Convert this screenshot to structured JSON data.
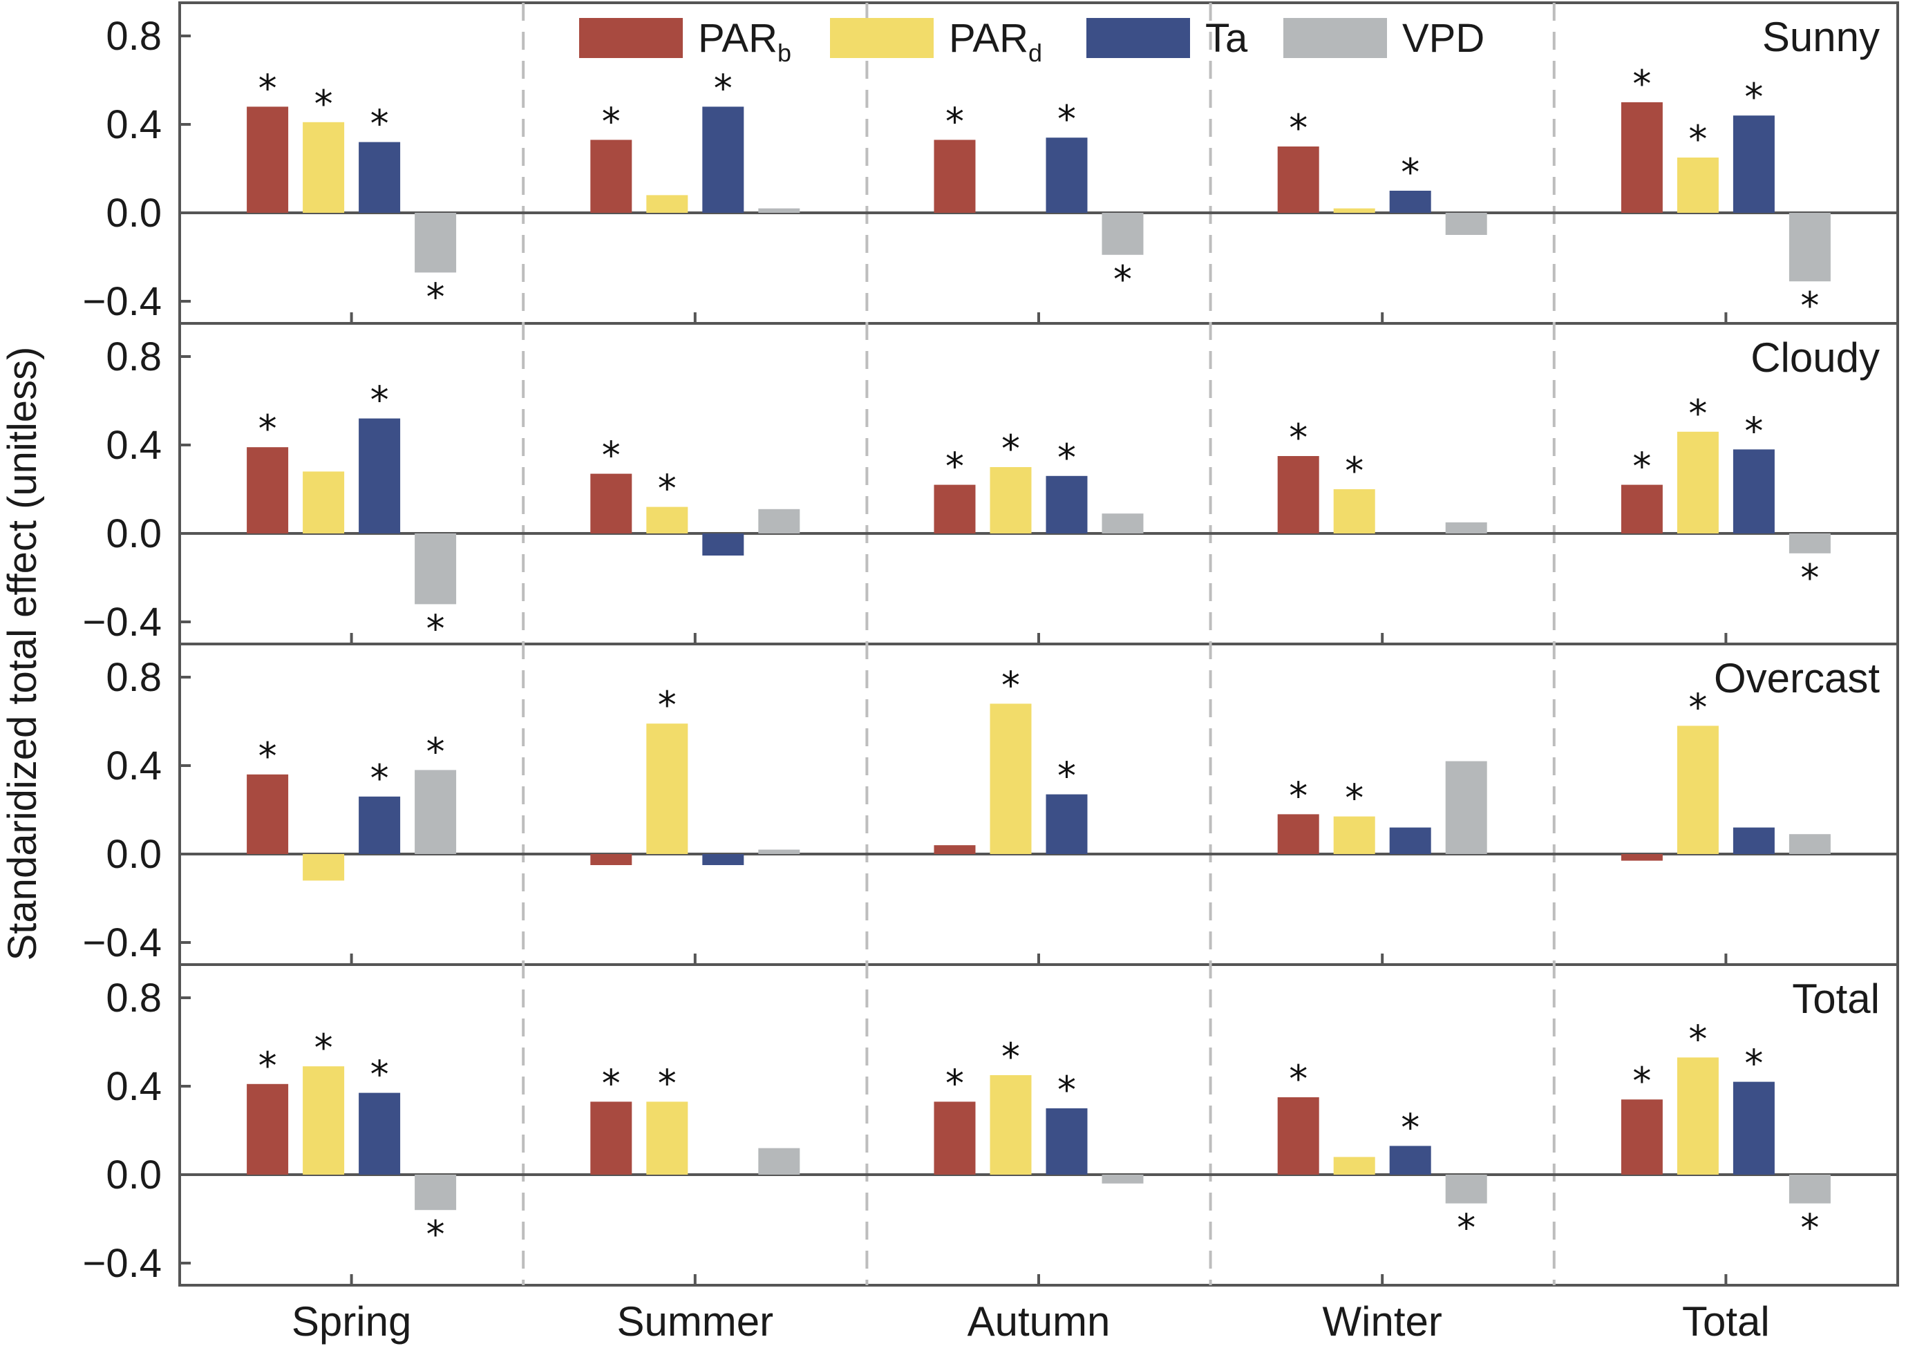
{
  "chart_data": {
    "type": "bar",
    "ylabel": "Standaridized total effect (unitless)",
    "ylim": [
      -0.5,
      0.95
    ],
    "yticks": [
      "0.8",
      "0.4",
      "0.0",
      "−0.4"
    ],
    "ytick_values": [
      0.8,
      0.4,
      0.0,
      -0.4
    ],
    "categories": [
      "Spring",
      "Summer",
      "Autumn",
      "Winter",
      "Total"
    ],
    "legend": {
      "placement": "top-center",
      "entries": [
        {
          "base": "PAR",
          "sub": "b",
          "color": "#a84a40"
        },
        {
          "base": "PAR",
          "sub": "d",
          "color": "#f2dc6a"
        },
        {
          "base": "Ta",
          "sub": "",
          "color": "#3c4f87"
        },
        {
          "base": "VPD",
          "sub": "",
          "color": "#b5b8ba"
        }
      ]
    },
    "panels": [
      {
        "label": "Sunny",
        "series": [
          {
            "values": [
              0.48,
              0.33,
              0.33,
              0.3,
              0.5
            ],
            "sig": [
              true,
              true,
              true,
              true,
              true
            ]
          },
          {
            "values": [
              0.41,
              0.08,
              0.0,
              0.02,
              0.25
            ],
            "sig": [
              true,
              false,
              false,
              false,
              true
            ]
          },
          {
            "values": [
              0.32,
              0.48,
              0.34,
              0.1,
              0.44
            ],
            "sig": [
              true,
              true,
              true,
              true,
              true
            ]
          },
          {
            "values": [
              -0.27,
              0.02,
              -0.19,
              -0.1,
              -0.31
            ],
            "sig": [
              true,
              false,
              true,
              false,
              true
            ]
          }
        ]
      },
      {
        "label": "Cloudy",
        "series": [
          {
            "values": [
              0.39,
              0.27,
              0.22,
              0.35,
              0.22
            ],
            "sig": [
              true,
              true,
              true,
              true,
              true
            ]
          },
          {
            "values": [
              0.28,
              0.12,
              0.3,
              0.2,
              0.46
            ],
            "sig": [
              false,
              true,
              true,
              true,
              true
            ]
          },
          {
            "values": [
              0.52,
              -0.1,
              0.26,
              0.0,
              0.38
            ],
            "sig": [
              true,
              false,
              true,
              false,
              true
            ]
          },
          {
            "values": [
              -0.32,
              0.11,
              0.09,
              0.05,
              -0.09
            ],
            "sig": [
              true,
              false,
              false,
              false,
              true
            ]
          }
        ]
      },
      {
        "label": "Overcast",
        "series": [
          {
            "values": [
              0.36,
              -0.05,
              0.04,
              0.18,
              -0.03
            ],
            "sig": [
              true,
              false,
              false,
              true,
              false
            ]
          },
          {
            "values": [
              -0.12,
              0.59,
              0.68,
              0.17,
              0.58
            ],
            "sig": [
              false,
              true,
              true,
              true,
              true
            ]
          },
          {
            "values": [
              0.26,
              -0.05,
              0.27,
              0.12,
              0.12
            ],
            "sig": [
              true,
              false,
              true,
              false,
              false
            ]
          },
          {
            "values": [
              0.38,
              0.02,
              0.0,
              0.42,
              0.09
            ],
            "sig": [
              true,
              false,
              false,
              false,
              false
            ]
          }
        ]
      },
      {
        "label": "Total",
        "series": [
          {
            "values": [
              0.41,
              0.33,
              0.33,
              0.35,
              0.34
            ],
            "sig": [
              true,
              true,
              true,
              true,
              true
            ]
          },
          {
            "values": [
              0.49,
              0.33,
              0.45,
              0.08,
              0.53
            ],
            "sig": [
              true,
              true,
              true,
              false,
              true
            ]
          },
          {
            "values": [
              0.37,
              0.0,
              0.3,
              0.13,
              0.42
            ],
            "sig": [
              true,
              false,
              true,
              true,
              true
            ]
          },
          {
            "values": [
              -0.16,
              0.12,
              -0.04,
              -0.13,
              -0.13
            ],
            "sig": [
              true,
              false,
              false,
              true,
              true
            ]
          }
        ]
      }
    ],
    "significance_marker": "*"
  }
}
